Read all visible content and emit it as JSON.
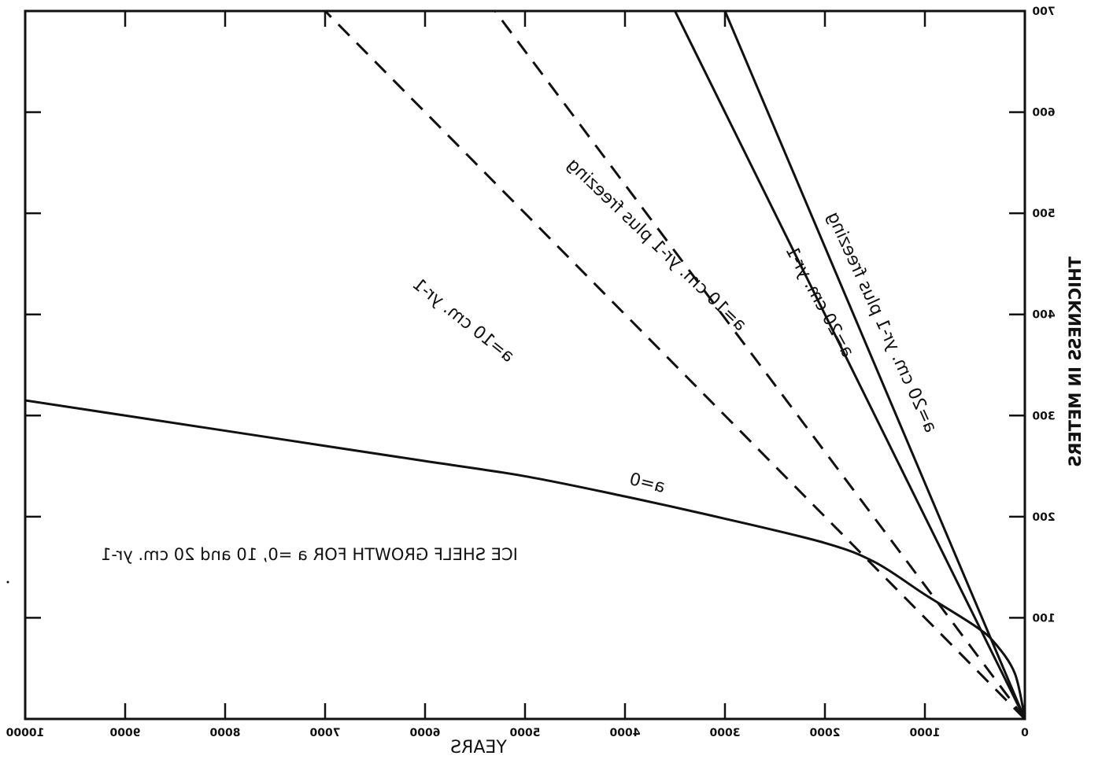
{
  "chart_data": {
    "type": "line",
    "title": "ICE SHELF GROWTH FOR a =0,  10 and 20 cm. yr-1",
    "xlabel": "YEARS",
    "ylabel": "THICKNESS IN METERS",
    "xlim": [
      0,
      10000
    ],
    "ylim": [
      0,
      700
    ],
    "x_ticks": [
      0,
      1000,
      2000,
      3000,
      4000,
      5000,
      6000,
      7000,
      8000,
      9000,
      10000
    ],
    "x_tick_labels": [
      "0",
      "1000",
      "2000",
      "3000",
      "4000",
      "5000",
      "6000",
      "7000",
      "8000",
      "9000",
      "10000"
    ],
    "y_ticks": [
      100,
      200,
      300,
      400,
      500,
      600,
      700
    ],
    "y_tick_labels": [
      "100",
      "200",
      "300",
      "400",
      "500",
      "600",
      "700"
    ],
    "mirrored": true,
    "grid": false,
    "series": [
      {
        "name": "a=0",
        "style": "solid",
        "x": [
          0,
          100,
          300,
          500,
          1000,
          1500,
          2000,
          3000,
          4000,
          5000,
          6000,
          7000,
          8000,
          9000,
          10000
        ],
        "y": [
          0,
          45,
          75,
          92,
          123,
          155,
          174,
          198,
          220,
          240,
          255,
          270,
          285,
          300,
          315
        ]
      },
      {
        "name": "a=10 cm. yr-1",
        "style": "dashed",
        "x": [
          0,
          7000
        ],
        "y": [
          0,
          700
        ]
      },
      {
        "name": "a=10 cm. yr-1 plus freezing",
        "style": "dashed",
        "x": [
          0,
          5300
        ],
        "y": [
          0,
          700
        ]
      },
      {
        "name": "a=20 cm. yr-1",
        "style": "solid",
        "x": [
          0,
          3500
        ],
        "y": [
          0,
          700
        ]
      },
      {
        "name": "a=20 cm. yr-1 plus freezing",
        "style": "solid",
        "x": [
          0,
          3000
        ],
        "y": [
          0,
          700
        ]
      }
    ],
    "annotations": [
      {
        "text": "a=0",
        "x": 3790,
        "y": 228,
        "angle": 14,
        "size": 22
      },
      {
        "text": "a=10 cm. yr-1",
        "x": 5650,
        "y": 390,
        "angle": 38.4,
        "size": 22
      },
      {
        "text": "a=10 cm. yr-1 plus freezing",
        "x": 3720,
        "y": 465,
        "angle": 43.8,
        "size": 22
      },
      {
        "text": "a=20 cm. yr-1",
        "x": 2100,
        "y": 410,
        "angle": 61.6,
        "size": 22
      },
      {
        "text": "a=20 cm. yr-1 plus freezing",
        "x": 1480,
        "y": 390,
        "angle": 65.5,
        "size": 22
      }
    ]
  }
}
